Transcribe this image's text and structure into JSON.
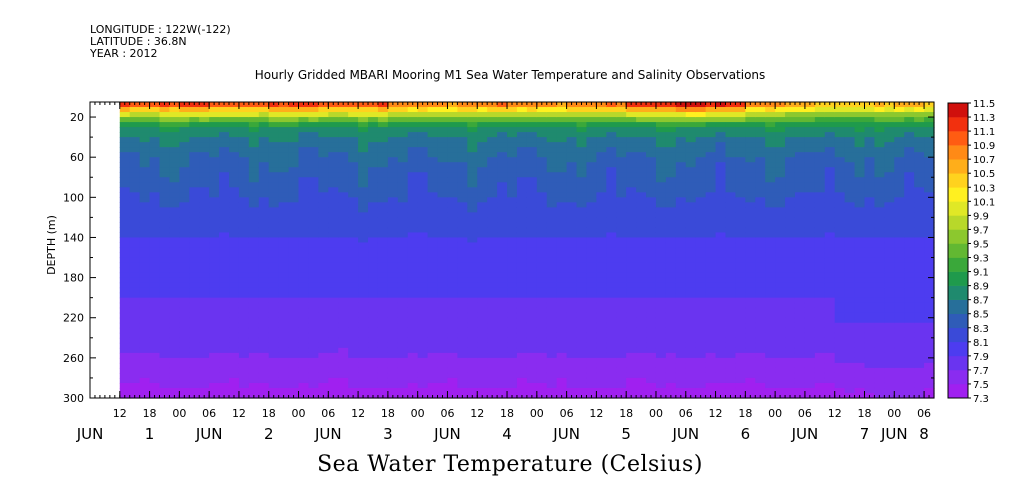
{
  "header": {
    "longitude": "LONGITUDE : 122W(-122)",
    "latitude": "LATITUDE : 36.8N",
    "year": "YEAR : 2012"
  },
  "chart_data": {
    "type": "heatmap",
    "title": "Hourly Gridded MBARI Mooring M1 Sea Water Temperature and Salinity Observations",
    "subtitle": "Sea Water Temperature (Celsius)",
    "ylabel": "DEPTH (m)",
    "xlabel": "",
    "yaxis": {
      "ticks": [
        20,
        60,
        100,
        140,
        180,
        220,
        260,
        300
      ],
      "range": [
        5,
        300
      ],
      "direction": "down"
    },
    "xaxis": {
      "range_hours": [
        0,
        170
      ],
      "data_start_hour": 6,
      "hour_ticks": [
        "12",
        "18",
        "00",
        "06",
        "12",
        "18",
        "00",
        "06",
        "12",
        "18",
        "00",
        "06",
        "12",
        "18",
        "00",
        "06",
        "12",
        "18",
        "00",
        "06",
        "12",
        "18",
        "00",
        "06",
        "12",
        "18",
        "00",
        "06",
        "12",
        "18",
        "00",
        "06",
        "12",
        "18",
        "00",
        "06"
      ],
      "day_labels": [
        {
          "label": "JUN",
          "hour": 0
        },
        {
          "label": "1",
          "hour": 12
        },
        {
          "label": "JUN",
          "hour": 24
        },
        {
          "label": "2",
          "hour": 36
        },
        {
          "label": "JUN",
          "hour": 48
        },
        {
          "label": "3",
          "hour": 60
        },
        {
          "label": "JUN",
          "hour": 72
        },
        {
          "label": "4",
          "hour": 84
        },
        {
          "label": "JUN",
          "hour": 96
        },
        {
          "label": "5",
          "hour": 108
        },
        {
          "label": "JUN",
          "hour": 120
        },
        {
          "label": "6",
          "hour": 132
        },
        {
          "label": "JUN",
          "hour": 144
        },
        {
          "label": "7",
          "hour": 156
        },
        {
          "label": "JUN",
          "hour": 162
        },
        {
          "label": "8",
          "hour": 168
        }
      ]
    },
    "colorbar": {
      "levels": [
        7.3,
        7.5,
        7.7,
        7.9,
        8.1,
        8.3,
        8.5,
        8.7,
        8.9,
        9.1,
        9.3,
        9.5,
        9.7,
        9.9,
        10.1,
        10.3,
        10.5,
        10.7,
        10.9,
        11.1,
        11.3,
        11.5
      ],
      "labels": [
        "7.3",
        "7.5",
        "7.7",
        "7.9",
        "8.1",
        "8.3",
        "8.5",
        "8.7",
        "8.9",
        "9.1",
        "9.3",
        "9.5",
        "9.7",
        "9.9",
        "10.1",
        "10.3",
        "10.5",
        "10.7",
        "10.9",
        "11.1",
        "11.3",
        "11.5"
      ],
      "colors": [
        "#a020f0",
        "#8a2cf0",
        "#6a34f0",
        "#4d3cf0",
        "#3a4ad8",
        "#2f5cb8",
        "#276f9a",
        "#1f8a6e",
        "#1f9a4c",
        "#3aa83a",
        "#62b832",
        "#8cc82e",
        "#b8d82a",
        "#e0e826",
        "#fff020",
        "#ffd21e",
        "#ffae1a",
        "#ff8a16",
        "#ff5c12",
        "#f2300e",
        "#d0100c",
        "#a0000a"
      ]
    },
    "depth_profile": {
      "depths": [
        5,
        10,
        15,
        20,
        25,
        30,
        40,
        50,
        60,
        80,
        100,
        120,
        140,
        160,
        180,
        200,
        220,
        240,
        260,
        280,
        300
      ],
      "temps": [
        11.0,
        10.6,
        10.0,
        9.6,
        9.2,
        8.9,
        8.7,
        8.6,
        8.5,
        8.4,
        8.3,
        8.2,
        8.1,
        8.0,
        7.95,
        7.9,
        7.85,
        7.8,
        7.75,
        7.65,
        7.55
      ]
    }
  }
}
